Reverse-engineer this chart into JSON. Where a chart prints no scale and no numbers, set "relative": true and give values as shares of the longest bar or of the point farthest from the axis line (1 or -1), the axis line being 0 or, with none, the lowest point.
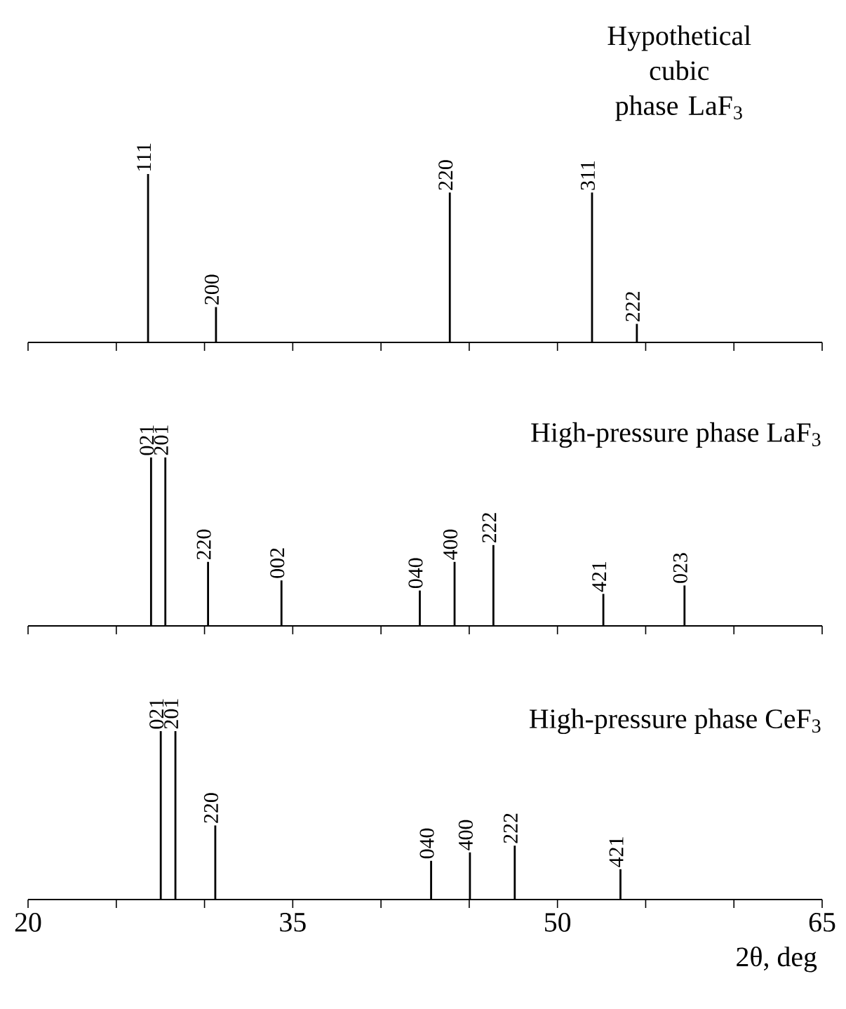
{
  "chart_data": [
    {
      "type": "bar",
      "title": "Hypothetical cubic phase LaF$_{3}$",
      "color": "#000000",
      "relative": true,
      "tick_labels": false,
      "x": [
        26.8,
        30.65,
        43.9,
        51.96,
        54.5
      ],
      "values": [
        1,
        0.21,
        0.89,
        0.89,
        0.11
      ],
      "xlim": [
        20,
        65
      ],
      "xticks": [
        {
          "value": 20,
          "label": null
        },
        {
          "value": 25,
          "label": null
        },
        {
          "value": 30,
          "label": null
        },
        {
          "value": 35,
          "label": null
        },
        {
          "value": 40,
          "label": null
        },
        {
          "value": 45,
          "label": null
        },
        {
          "value": 50,
          "label": null
        },
        {
          "value": 55,
          "label": null
        },
        {
          "value": 60,
          "label": null
        },
        {
          "value": 65,
          "label": null
        }
      ],
      "annotations": [
        {
          "text": "111",
          "x": 26.8,
          "y": 1
        },
        {
          "text": "200",
          "x": 30.65,
          "y": 0.21
        },
        {
          "text": "220",
          "x": 43.9,
          "y": 0.89
        },
        {
          "text": "311",
          "x": 51.96,
          "y": 0.89
        },
        {
          "text": "222",
          "x": 54.5,
          "y": 0.11
        }
      ]
    },
    {
      "type": "bar",
      "title": "High-pressure phase  LaF$_{3}$",
      "color": "#000000",
      "relative": true,
      "tick_labels": false,
      "x": [
        26.97,
        27.78,
        30.2,
        34.36,
        42.2,
        44.17,
        46.37,
        52.6,
        57.2
      ],
      "values": [
        1,
        1,
        0.38,
        0.27,
        0.21,
        0.38,
        0.48,
        0.19,
        0.24
      ],
      "xlim": [
        20,
        65
      ],
      "xticks": [
        {
          "value": 20,
          "label": null
        },
        {
          "value": 25,
          "label": null
        },
        {
          "value": 30,
          "label": null
        },
        {
          "value": 35,
          "label": null
        },
        {
          "value": 40,
          "label": null
        },
        {
          "value": 45,
          "label": null
        },
        {
          "value": 50,
          "label": null
        },
        {
          "value": 55,
          "label": null
        },
        {
          "value": 60,
          "label": null
        },
        {
          "value": 65,
          "label": null
        }
      ],
      "annotations": [
        {
          "text": "021",
          "x": 26.97,
          "y": 1
        },
        {
          "text": "201",
          "x": 27.78,
          "y": 1
        },
        {
          "text": "220",
          "x": 30.2,
          "y": 0.38
        },
        {
          "text": "002",
          "x": 34.36,
          "y": 0.27
        },
        {
          "text": "040",
          "x": 42.2,
          "y": 0.21
        },
        {
          "text": "400",
          "x": 44.17,
          "y": 0.38
        },
        {
          "text": "222",
          "x": 46.37,
          "y": 0.48
        },
        {
          "text": "421",
          "x": 52.6,
          "y": 0.19
        },
        {
          "text": "023",
          "x": 57.2,
          "y": 0.24
        }
      ]
    },
    {
      "type": "bar",
      "title": "High-pressure phase  CeF$_{3}$",
      "xlabel": "2θ, deg",
      "color": "#000000",
      "relative": true,
      "tick_labels": "x",
      "x": [
        27.52,
        28.35,
        30.61,
        42.84,
        45.04,
        47.58,
        53.57
      ],
      "values": [
        1,
        1,
        0.44,
        0.23,
        0.28,
        0.32,
        0.18
      ],
      "xlim": [
        20,
        65
      ],
      "xticks": [
        {
          "value": 20,
          "label": "20"
        },
        {
          "value": 25,
          "label": null
        },
        {
          "value": 30,
          "label": null
        },
        {
          "value": 35,
          "label": "35"
        },
        {
          "value": 40,
          "label": null
        },
        {
          "value": 45,
          "label": null
        },
        {
          "value": 50,
          "label": "50"
        },
        {
          "value": 55,
          "label": null
        },
        {
          "value": 60,
          "label": null
        },
        {
          "value": 65,
          "label": "65"
        }
      ],
      "annotations": [
        {
          "text": "021",
          "x": 27.52,
          "y": 1
        },
        {
          "text": "201",
          "x": 28.35,
          "y": 1
        },
        {
          "text": "220",
          "x": 30.61,
          "y": 0.44
        },
        {
          "text": "040",
          "x": 42.84,
          "y": 0.23
        },
        {
          "text": "400",
          "x": 45.04,
          "y": 0.28
        },
        {
          "text": "222",
          "x": 47.58,
          "y": 0.32
        },
        {
          "text": "421",
          "x": 53.57,
          "y": 0.18
        }
      ]
    }
  ]
}
